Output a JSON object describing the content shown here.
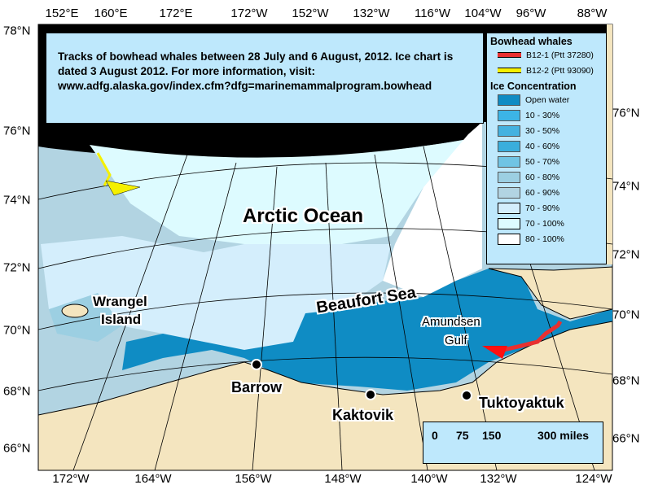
{
  "title_text": "Tracks of bowhead whales between 28 July and 6 August, 2012.  Ice chart is dated 3 August 2012.   For more information, visit: www.adfg.alaska.gov/index.cfm?dfg=marinemammalprogram.bowhead",
  "axes": {
    "top": [
      "152°E",
      "160°E",
      "172°E",
      "172°W",
      "152°W",
      "132°W",
      "116°W",
      "104°W",
      "96°W",
      "88°W"
    ],
    "bottom": [
      "172°W",
      "164°W",
      "156°W",
      "148°W",
      "140°W",
      "132°W",
      "124°W"
    ],
    "left": [
      "78°N",
      "76°N",
      "74°N",
      "72°N",
      "70°N",
      "68°N",
      "66°N"
    ],
    "right": [
      "76°N",
      "74°N",
      "72°N",
      "70°N",
      "68°N",
      "66°N"
    ]
  },
  "legend": {
    "whales_title": "Bowhead whales",
    "whales": [
      {
        "label": "B12-1 (Ptt 37280)",
        "color": "#e83030"
      },
      {
        "label": "B12-2 (Ptt 93090)",
        "color": "#f5f000"
      }
    ],
    "ice_title": "Ice Concentration",
    "ice": [
      {
        "label": "Open water",
        "color": "#0f8cc4"
      },
      {
        "label": "10 - 30%",
        "color": "#3cb4e6"
      },
      {
        "label": "30 - 50%",
        "color": "#44b2e0"
      },
      {
        "label": "40 - 60%",
        "color": "#3aaedc"
      },
      {
        "label": "50 - 70%",
        "color": "#70c4e4"
      },
      {
        "label": "60 - 80%",
        "color": "#9ccfe2"
      },
      {
        "label": "60 - 90%",
        "color": "#b2d4e2"
      },
      {
        "label": "70 - 90%",
        "color": "#d4eefc"
      },
      {
        "label": "70 - 100%",
        "color": "#ddfbff"
      },
      {
        "label": "80 - 100%",
        "color": "#ffffff"
      }
    ]
  },
  "places": {
    "ocean": "Arctic Ocean",
    "sea": "Beaufort Sea",
    "gulf_1": "Amundsen",
    "gulf_2": "Gulf",
    "island_1": "Wrangel",
    "island_2": "Island",
    "barrow": "Barrow",
    "kaktovik": "Kaktovik",
    "tuktoyaktuk": "Tuktoyaktuk"
  },
  "scale": {
    "ticks": [
      "0",
      "75",
      "150",
      "300 miles"
    ]
  },
  "colors": {
    "land": "#f4e5bf",
    "no_data": "#000000"
  }
}
